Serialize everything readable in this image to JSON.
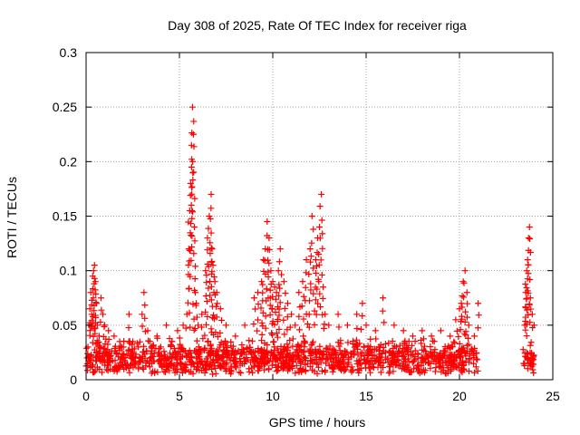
{
  "chart_data": {
    "type": "scatter",
    "title": "Day 308 of 2025, Rate Of TEC Index for receiver riga",
    "xlabel": "GPS time / hours",
    "ylabel": "ROTI / TECUs",
    "xlim": [
      0,
      25
    ],
    "ylim": [
      0,
      0.3
    ],
    "xticks": [
      0,
      5,
      10,
      15,
      20,
      25
    ],
    "xtick_labels": [
      "0",
      "5",
      "10",
      "15",
      "20",
      "25"
    ],
    "yticks": [
      0,
      0.05,
      0.1,
      0.15,
      0.2,
      0.25,
      0.3
    ],
    "ytick_labels": [
      "0",
      "0.05",
      "0.1",
      "0.15",
      "0.2",
      "0.25",
      "0.3"
    ],
    "grid": true,
    "marker": "plus",
    "color": "#ff0000",
    "points": [
      [
        0.05,
        0.02
      ],
      [
        0.1,
        0.03
      ],
      [
        0.15,
        0.05
      ],
      [
        0.2,
        0.065
      ],
      [
        0.25,
        0.08
      ],
      [
        0.3,
        0.06
      ],
      [
        0.35,
        0.095
      ],
      [
        0.4,
        0.1
      ],
      [
        0.45,
        0.105
      ],
      [
        0.5,
        0.09
      ],
      [
        0.55,
        0.07
      ],
      [
        0.6,
        0.05
      ],
      [
        0.7,
        0.04
      ],
      [
        0.8,
        0.075
      ],
      [
        0.9,
        0.06
      ],
      [
        1.0,
        0.05
      ],
      [
        1.2,
        0.045
      ],
      [
        1.5,
        0.04
      ],
      [
        1.8,
        0.035
      ],
      [
        2.0,
        0.03
      ],
      [
        2.3,
        0.06
      ],
      [
        2.5,
        0.035
      ],
      [
        2.8,
        0.03
      ],
      [
        3.0,
        0.06
      ],
      [
        3.1,
        0.08
      ],
      [
        3.3,
        0.045
      ],
      [
        3.5,
        0.03
      ],
      [
        3.8,
        0.04
      ],
      [
        4.0,
        0.03
      ],
      [
        4.3,
        0.05
      ],
      [
        4.6,
        0.035
      ],
      [
        4.9,
        0.045
      ],
      [
        5.2,
        0.05
      ],
      [
        5.4,
        0.06
      ],
      [
        5.5,
        0.12
      ],
      [
        5.55,
        0.155
      ],
      [
        5.6,
        0.18
      ],
      [
        5.65,
        0.195
      ],
      [
        5.7,
        0.25
      ],
      [
        5.75,
        0.225
      ],
      [
        5.8,
        0.14
      ],
      [
        5.85,
        0.08
      ],
      [
        5.9,
        0.07
      ],
      [
        6.0,
        0.05
      ],
      [
        6.2,
        0.06
      ],
      [
        6.4,
        0.1
      ],
      [
        6.5,
        0.13
      ],
      [
        6.6,
        0.15
      ],
      [
        6.7,
        0.17
      ],
      [
        6.75,
        0.12
      ],
      [
        6.8,
        0.105
      ],
      [
        6.9,
        0.09
      ],
      [
        7.0,
        0.08
      ],
      [
        7.2,
        0.065
      ],
      [
        7.5,
        0.05
      ],
      [
        8.0,
        0.04
      ],
      [
        8.5,
        0.05
      ],
      [
        9.0,
        0.075
      ],
      [
        9.2,
        0.08
      ],
      [
        9.4,
        0.09
      ],
      [
        9.5,
        0.11
      ],
      [
        9.6,
        0.12
      ],
      [
        9.7,
        0.145
      ],
      [
        9.8,
        0.13
      ],
      [
        9.9,
        0.1
      ],
      [
        10.0,
        0.09
      ],
      [
        10.1,
        0.085
      ],
      [
        10.2,
        0.08
      ],
      [
        10.3,
        0.1
      ],
      [
        10.4,
        0.12
      ],
      [
        10.6,
        0.09
      ],
      [
        10.8,
        0.07
      ],
      [
        11.0,
        0.06
      ],
      [
        11.2,
        0.05
      ],
      [
        11.4,
        0.08
      ],
      [
        11.6,
        0.09
      ],
      [
        11.8,
        0.11
      ],
      [
        12.0,
        0.12
      ],
      [
        12.1,
        0.15
      ],
      [
        12.3,
        0.11
      ],
      [
        12.4,
        0.13
      ],
      [
        12.5,
        0.14
      ],
      [
        12.6,
        0.17
      ],
      [
        12.7,
        0.085
      ],
      [
        12.8,
        0.06
      ],
      [
        13.0,
        0.05
      ],
      [
        13.5,
        0.06
      ],
      [
        14.0,
        0.05
      ],
      [
        14.5,
        0.06
      ],
      [
        14.8,
        0.07
      ],
      [
        15.0,
        0.05
      ],
      [
        15.5,
        0.045
      ],
      [
        15.9,
        0.075
      ],
      [
        16.5,
        0.05
      ],
      [
        17.0,
        0.045
      ],
      [
        17.5,
        0.04
      ],
      [
        18.0,
        0.045
      ],
      [
        18.5,
        0.04
      ],
      [
        19.0,
        0.045
      ],
      [
        19.5,
        0.04
      ],
      [
        19.8,
        0.055
      ],
      [
        20.0,
        0.065
      ],
      [
        20.1,
        0.07
      ],
      [
        20.2,
        0.09
      ],
      [
        20.3,
        0.1
      ],
      [
        20.4,
        0.08
      ],
      [
        20.5,
        0.05
      ],
      [
        20.8,
        0.04
      ],
      [
        21.0,
        0.07
      ],
      [
        23.5,
        0.05
      ],
      [
        23.55,
        0.08
      ],
      [
        23.6,
        0.1
      ],
      [
        23.65,
        0.11
      ],
      [
        23.7,
        0.13
      ],
      [
        23.75,
        0.14
      ],
      [
        23.8,
        0.075
      ],
      [
        23.9,
        0.06
      ],
      [
        24.0,
        0.05
      ]
    ],
    "noise_band": {
      "x_segments": [
        [
          0,
          21.0
        ],
        [
          23.4,
          24.0
        ]
      ],
      "y_range": [
        0.005,
        0.04
      ]
    }
  }
}
